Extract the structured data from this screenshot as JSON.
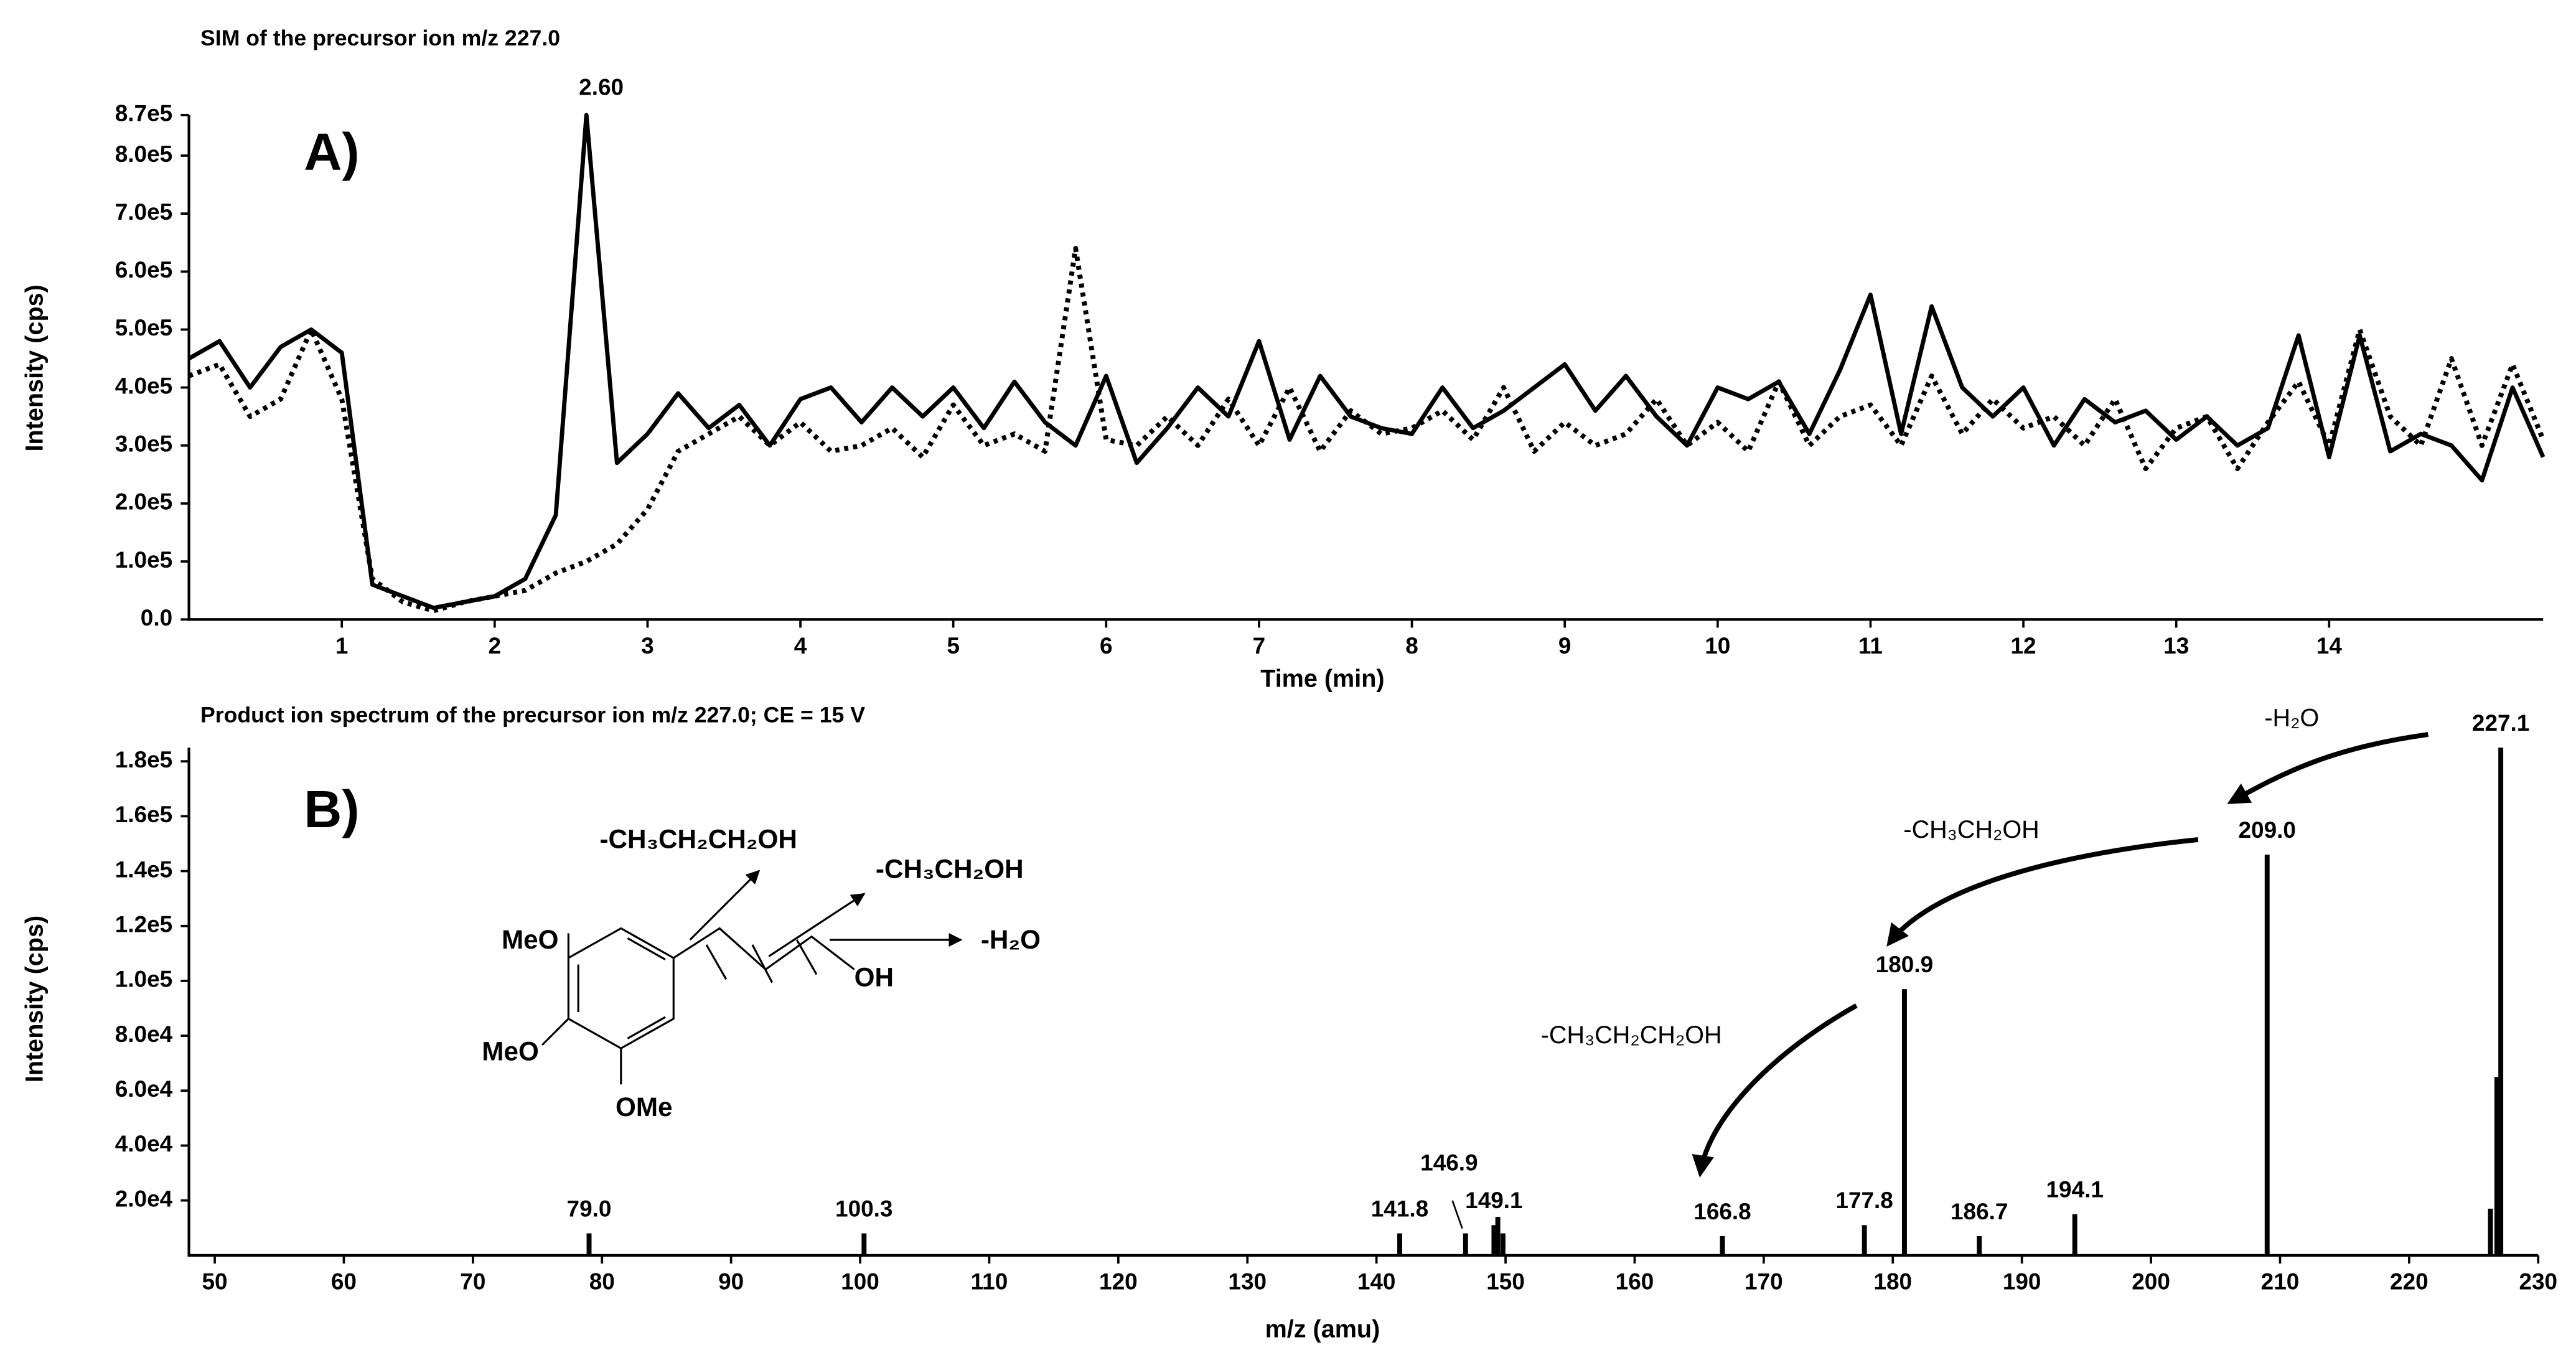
{
  "chart_data": [
    {
      "type": "line",
      "title": "SIM of the precursor ion m/z 227.0",
      "panel_label": "A)",
      "annotations": [
        "2.60"
      ],
      "x_label": "Time (min)",
      "y_label": "Intensity (cps)",
      "x": [
        0,
        0.2,
        0.4,
        0.6,
        0.8,
        1,
        1.2,
        1.4,
        1.6,
        1.8,
        2,
        2.2,
        2.4,
        2.6,
        2.8,
        3,
        3.2,
        3.4,
        3.6,
        3.8,
        4,
        4.2,
        4.4,
        4.6,
        4.8,
        5,
        5.2,
        5.4,
        5.6,
        5.8,
        6,
        6.2,
        6.4,
        6.6,
        6.8,
        7,
        7.2,
        7.4,
        7.6,
        7.8,
        8,
        8.2,
        8.4,
        8.6,
        8.8,
        9,
        9.2,
        9.4,
        9.6,
        9.8,
        10,
        10.2,
        10.4,
        10.6,
        10.8,
        11,
        11.2,
        11.4,
        11.6,
        11.8,
        12,
        12.2,
        12.4,
        12.6,
        12.8,
        13,
        13.2,
        13.4,
        13.6,
        13.8,
        14,
        14.2,
        14.4,
        14.6,
        14.8,
        15,
        15.2,
        15.4
      ],
      "series": [
        {
          "color": "#000000",
          "line_style": "solid",
          "values": [
            450000,
            480000,
            400000,
            470000,
            500000,
            460000,
            60000,
            40000,
            20000,
            30000,
            40000,
            70000,
            180000,
            870000,
            270000,
            320000,
            390000,
            330000,
            370000,
            300000,
            380000,
            400000,
            340000,
            400000,
            350000,
            400000,
            330000,
            410000,
            340000,
            300000,
            420000,
            270000,
            330000,
            400000,
            350000,
            480000,
            310000,
            420000,
            350000,
            330000,
            320000,
            400000,
            330000,
            360000,
            400000,
            440000,
            360000,
            420000,
            350000,
            300000,
            400000,
            380000,
            410000,
            320000,
            430000,
            560000,
            320000,
            540000,
            400000,
            350000,
            400000,
            300000,
            380000,
            340000,
            360000,
            310000,
            350000,
            300000,
            330000,
            490000,
            280000,
            490000,
            290000,
            320000,
            300000,
            240000,
            400000,
            280000
          ]
        },
        {
          "color": "#000000",
          "line_style": "dotted",
          "values": [
            420000,
            440000,
            350000,
            380000,
            500000,
            380000,
            70000,
            30000,
            15000,
            30000,
            40000,
            50000,
            80000,
            100000,
            130000,
            190000,
            290000,
            320000,
            350000,
            300000,
            340000,
            290000,
            300000,
            330000,
            280000,
            370000,
            300000,
            320000,
            290000,
            640000,
            310000,
            300000,
            350000,
            300000,
            380000,
            300000,
            400000,
            290000,
            360000,
            320000,
            330000,
            360000,
            310000,
            400000,
            290000,
            340000,
            300000,
            320000,
            380000,
            300000,
            340000,
            290000,
            410000,
            300000,
            350000,
            370000,
            300000,
            420000,
            320000,
            380000,
            330000,
            350000,
            300000,
            380000,
            260000,
            330000,
            350000,
            260000,
            340000,
            410000,
            300000,
            500000,
            350000,
            300000,
            450000,
            300000,
            440000,
            310000
          ]
        }
      ],
      "xlim": [
        0,
        15.4
      ],
      "xticks": [
        1,
        2,
        3,
        4,
        5,
        6,
        7,
        8,
        9,
        10,
        11,
        12,
        13,
        14
      ],
      "ylim": [
        0,
        870000
      ],
      "yticks": [
        {
          "value": 0,
          "label": "0.0"
        },
        {
          "value": 100000,
          "label": "1.0e5"
        },
        {
          "value": 200000,
          "label": "2.0e5"
        },
        {
          "value": 300000,
          "label": "3.0e5"
        },
        {
          "value": 400000,
          "label": "4.0e5"
        },
        {
          "value": 500000,
          "label": "5.0e5"
        },
        {
          "value": 600000,
          "label": "6.0e5"
        },
        {
          "value": 700000,
          "label": "7.0e5"
        },
        {
          "value": 800000,
          "label": "8.0e5"
        },
        {
          "value": 870000,
          "label": "8.7e5"
        }
      ]
    },
    {
      "type": "bar",
      "title": "Product ion spectrum of the precursor ion m/z 227.0; CE = 15 V",
      "panel_label": "B)",
      "annotations": [
        "-H₂O",
        "-CH₃CH₂OH",
        "-CH₃CH₂CH₂OH",
        "MeO",
        "MeO",
        "OMe",
        "OH",
        "-CH₃CH₂CH₂OH",
        "-CH₃CH₂OH",
        "-H₂O"
      ],
      "x_label": "m/z (amu)",
      "y_label": "Intensity (cps)",
      "x": [
        79.0,
        100.3,
        141.8,
        146.9,
        149.1,
        149.4,
        149.8,
        166.8,
        177.8,
        180.9,
        186.7,
        194.1,
        209.0,
        226.3,
        226.8,
        227.1
      ],
      "x_labels": [
        "79.0",
        "100.3",
        "141.8",
        "146.9",
        "149.1",
        null,
        null,
        "166.8",
        "177.8",
        "180.9",
        "186.7",
        "194.1",
        "209.0",
        null,
        null,
        "227.1"
      ],
      "values": [
        8000,
        8000,
        8000,
        8000,
        11000,
        14000,
        8000,
        7000,
        11000,
        97000,
        7000,
        15000,
        146000,
        17000,
        65000,
        185000
      ],
      "color": "#000000",
      "xlim": [
        48,
        230
      ],
      "xticks": [
        50,
        60,
        70,
        80,
        90,
        100,
        110,
        120,
        130,
        140,
        150,
        160,
        170,
        180,
        190,
        200,
        210,
        220,
        230
      ],
      "ylim": [
        0,
        185000
      ],
      "yticks": [
        {
          "value": 20000,
          "label": "2.0e4"
        },
        {
          "value": 40000,
          "label": "4.0e4"
        },
        {
          "value": 60000,
          "label": "6.0e4"
        },
        {
          "value": 80000,
          "label": "8.0e4"
        },
        {
          "value": 100000,
          "label": "1.0e5"
        },
        {
          "value": 120000,
          "label": "1.2e5"
        },
        {
          "value": 140000,
          "label": "1.4e5"
        },
        {
          "value": 160000,
          "label": "1.6e5"
        },
        {
          "value": 180000,
          "label": "1.8e5"
        }
      ]
    }
  ]
}
